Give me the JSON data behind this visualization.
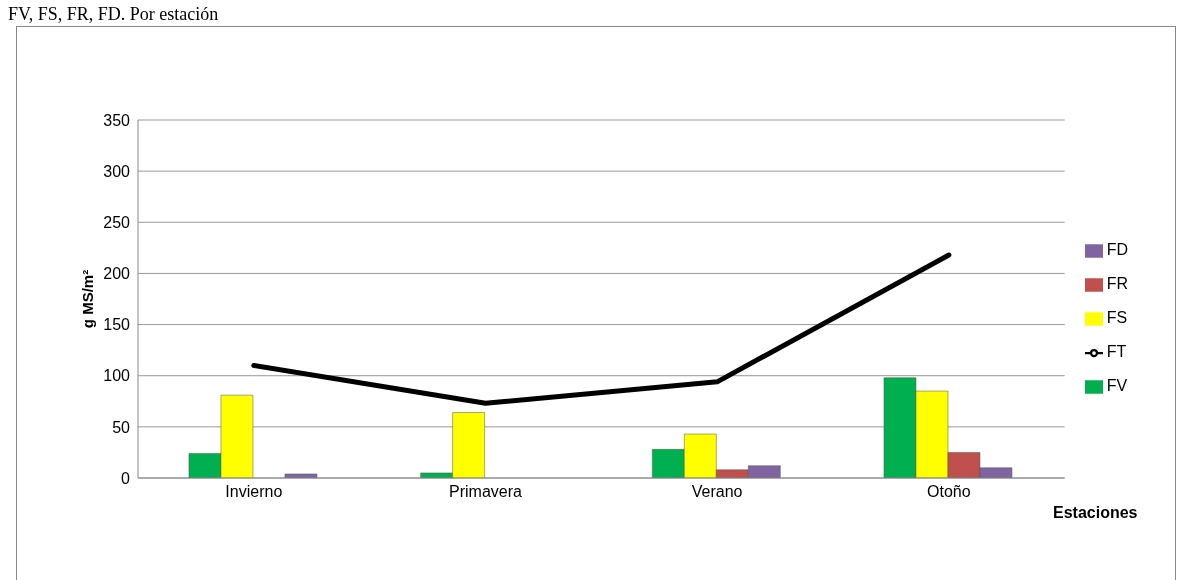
{
  "chart_data": {
    "type": "bar",
    "title": "FV, FS, FR, FD. Por estación",
    "xlabel": "Estaciones",
    "ylabel": "g MS/m²",
    "categories": [
      "Invierno",
      "Primavera",
      "Verano",
      "Otoño"
    ],
    "series": [
      {
        "name": "FV",
        "color": "#00b050",
        "values": [
          24,
          5,
          28,
          98
        ]
      },
      {
        "name": "FS",
        "color": "#ffff00",
        "values": [
          81,
          64,
          43,
          85
        ]
      },
      {
        "name": "FR",
        "color": "#c0504d",
        "values": [
          0,
          0,
          8,
          25
        ]
      },
      {
        "name": "FD",
        "color": "#8064a2",
        "values": [
          4,
          0,
          12,
          10
        ]
      },
      {
        "name": "FT",
        "color": "#000000",
        "type": "line",
        "values": [
          110,
          73,
          94,
          218
        ]
      }
    ],
    "ylim": [
      0,
      350
    ],
    "yticks": [
      0,
      50,
      100,
      150,
      200,
      250,
      300,
      350
    ],
    "grid": "y",
    "legend": "right",
    "marker": "none"
  }
}
